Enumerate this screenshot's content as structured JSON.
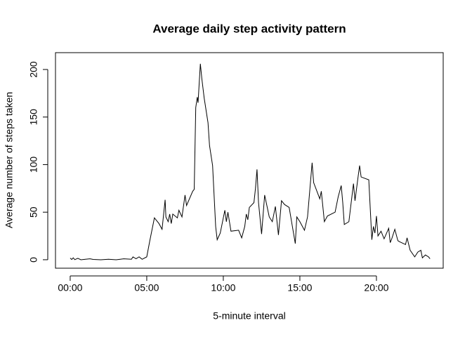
{
  "chart_data": {
    "type": "line",
    "title": "Average daily step activity pattern",
    "x_label": "5-minute interval",
    "y_label": "Average number of steps taken",
    "xlim": [
      -0.96,
      24.36
    ],
    "ylim": [
      -8.9,
      217.7
    ],
    "xticks": [
      {
        "value": 0,
        "label": "00:00"
      },
      {
        "value": 5,
        "label": "05:00"
      },
      {
        "value": 10,
        "label": "10:00"
      },
      {
        "value": 15,
        "label": "15:00"
      },
      {
        "value": 20,
        "label": "20:00"
      }
    ],
    "yticks": [
      0,
      50,
      100,
      150,
      200
    ],
    "color": "#000000",
    "x": [
      0,
      0.1,
      0.2,
      0.3,
      0.5,
      0.7,
      1,
      1.3,
      1.5,
      2,
      2.5,
      3,
      3.5,
      4,
      4.1,
      4.3,
      4.5,
      4.7,
      5,
      5.2,
      5.5,
      5.8,
      6,
      6.2,
      6.25,
      6.4,
      6.5,
      6.6,
      6.7,
      7,
      7.1,
      7.3,
      7.5,
      7.6,
      8,
      8.1,
      8.2,
      8.3,
      8.35,
      8.5,
      8.6,
      8.75,
      9,
      9.1,
      9.3,
      9.5,
      9.6,
      9.8,
      10,
      10.1,
      10.2,
      10.3,
      10.5,
      11,
      11.2,
      11.4,
      11.5,
      11.6,
      11.7,
      12,
      12.1,
      12.2,
      12.3,
      12.5,
      12.7,
      13,
      13.2,
      13.4,
      13.6,
      13.8,
      14,
      14.3,
      14.5,
      14.7,
      14.8,
      15,
      15.3,
      15.5,
      15.8,
      15.9,
      16.3,
      16.4,
      16.6,
      16.8,
      17.3,
      17.5,
      17.7,
      17.8,
      17.9,
      18.2,
      18.5,
      18.6,
      18.8,
      18.9,
      19,
      19.5,
      19.7,
      19.8,
      19.9,
      20,
      20.1,
      20.3,
      20.5,
      20.8,
      20.9,
      21,
      21.2,
      21.4,
      21.5,
      21.9,
      22,
      22.2,
      22.5,
      22.7,
      22.9,
      23,
      23.2,
      23.4,
      23.5
    ],
    "values": [
      1.7,
      0.3,
      2,
      0.1,
      1.5,
      0,
      0.5,
      1,
      0.3,
      0,
      0.5,
      0,
      1,
      0.5,
      3,
      1,
      3,
      0.5,
      3,
      20,
      44,
      38,
      32,
      63,
      45,
      40,
      48,
      38,
      48,
      44,
      52,
      45,
      68,
      57,
      72,
      74,
      160,
      171,
      165,
      206,
      190,
      170,
      144,
      120,
      99,
      35,
      21,
      28,
      44,
      52,
      40,
      50,
      30,
      31,
      23,
      35,
      48,
      42,
      55,
      60,
      75,
      95,
      60,
      27,
      68,
      45,
      40,
      56,
      26,
      62,
      58,
      55,
      36,
      17,
      45,
      40,
      31,
      45,
      102,
      81,
      64,
      72,
      40,
      46,
      50,
      66,
      78,
      60,
      37,
      40,
      80,
      62,
      87,
      99,
      87,
      84,
      21,
      35,
      28,
      46,
      25,
      30,
      22,
      33,
      18,
      22,
      32,
      20,
      19,
      16,
      23,
      10,
      3,
      8,
      10,
      2,
      5,
      3,
      1
    ]
  }
}
